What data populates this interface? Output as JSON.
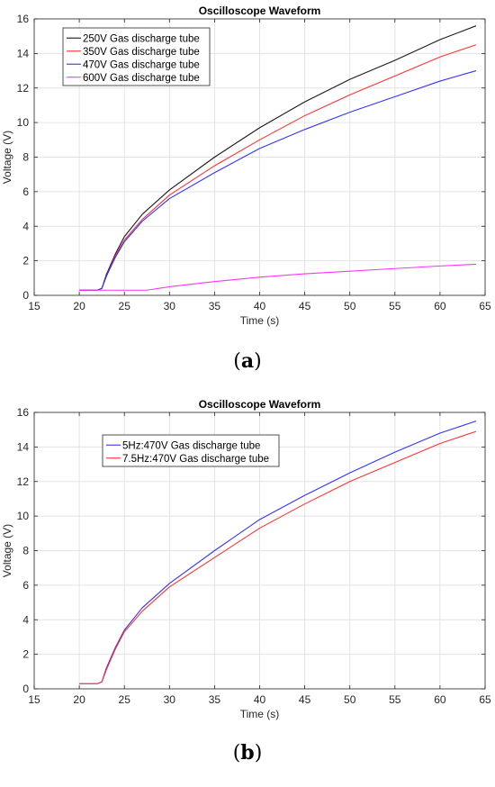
{
  "chart_data": [
    {
      "type": "line",
      "title": "Oscilloscope Waveform",
      "xlabel": "Time (s)",
      "ylabel": "Voltage (V)",
      "xlim": [
        15,
        65
      ],
      "ylim": [
        0,
        16
      ],
      "xticks": [
        15,
        20,
        25,
        30,
        35,
        40,
        45,
        50,
        55,
        60,
        65
      ],
      "yticks": [
        0,
        2,
        4,
        6,
        8,
        10,
        12,
        14,
        16
      ],
      "grid": true,
      "legend_position": "top-left",
      "caption": "a",
      "series": [
        {
          "name": "250V Gas discharge tube",
          "color": "#1a1a1a",
          "x": [
            20,
            22,
            22.5,
            23,
            24,
            25,
            27,
            30,
            35,
            40,
            45,
            50,
            55,
            60,
            64
          ],
          "y": [
            0.3,
            0.3,
            0.4,
            1.2,
            2.4,
            3.4,
            4.7,
            6.1,
            8.0,
            9.7,
            11.2,
            12.5,
            13.6,
            14.8,
            15.6
          ]
        },
        {
          "name": "350V Gas discharge tube",
          "color": "#ff3333",
          "x": [
            20,
            22,
            22.5,
            23,
            24,
            25,
            27,
            30,
            35,
            40,
            45,
            50,
            55,
            60,
            64
          ],
          "y": [
            0.3,
            0.3,
            0.4,
            1.1,
            2.3,
            3.2,
            4.4,
            5.8,
            7.5,
            9.0,
            10.4,
            11.6,
            12.7,
            13.8,
            14.5
          ]
        },
        {
          "name": "470V Gas discharge tube",
          "color": "#3333ff",
          "x": [
            20,
            22,
            22.5,
            23,
            24,
            25,
            27,
            30,
            35,
            40,
            45,
            50,
            55,
            60,
            64
          ],
          "y": [
            0.3,
            0.3,
            0.4,
            1.1,
            2.2,
            3.1,
            4.3,
            5.6,
            7.1,
            8.5,
            9.6,
            10.6,
            11.5,
            12.4,
            13.0
          ]
        },
        {
          "name": "600V Gas discharge tube",
          "color": "#ff33ff",
          "x": [
            20,
            25,
            27.5,
            30,
            35,
            40,
            45,
            50,
            55,
            60,
            64
          ],
          "y": [
            0.3,
            0.3,
            0.3,
            0.5,
            0.8,
            1.05,
            1.25,
            1.4,
            1.55,
            1.7,
            1.8
          ]
        }
      ]
    },
    {
      "type": "line",
      "title": "Oscilloscope Waveform",
      "xlabel": "Time (s)",
      "ylabel": "Voltage (V)",
      "xlim": [
        15,
        65
      ],
      "ylim": [
        0,
        16
      ],
      "xticks": [
        15,
        20,
        25,
        30,
        35,
        40,
        45,
        50,
        55,
        60,
        65
      ],
      "yticks": [
        0,
        2,
        4,
        6,
        8,
        10,
        12,
        14,
        16
      ],
      "grid": true,
      "legend_position": "top-left",
      "caption": "b",
      "series": [
        {
          "name": "5Hz:470V Gas discharge tube",
          "color": "#3333ff",
          "x": [
            20,
            22,
            22.5,
            23,
            24,
            25,
            27,
            30,
            35,
            40,
            45,
            50,
            55,
            60,
            64
          ],
          "y": [
            0.3,
            0.3,
            0.4,
            1.2,
            2.4,
            3.4,
            4.7,
            6.1,
            8.0,
            9.8,
            11.2,
            12.5,
            13.7,
            14.8,
            15.5
          ]
        },
        {
          "name": "7.5Hz:470V Gas discharge tube",
          "color": "#ff3333",
          "x": [
            20,
            22,
            22.5,
            23,
            24,
            25,
            27,
            30,
            35,
            40,
            45,
            50,
            55,
            60,
            64
          ],
          "y": [
            0.3,
            0.3,
            0.4,
            1.1,
            2.3,
            3.3,
            4.5,
            5.9,
            7.6,
            9.3,
            10.7,
            12.0,
            13.1,
            14.2,
            14.9
          ]
        }
      ]
    }
  ]
}
